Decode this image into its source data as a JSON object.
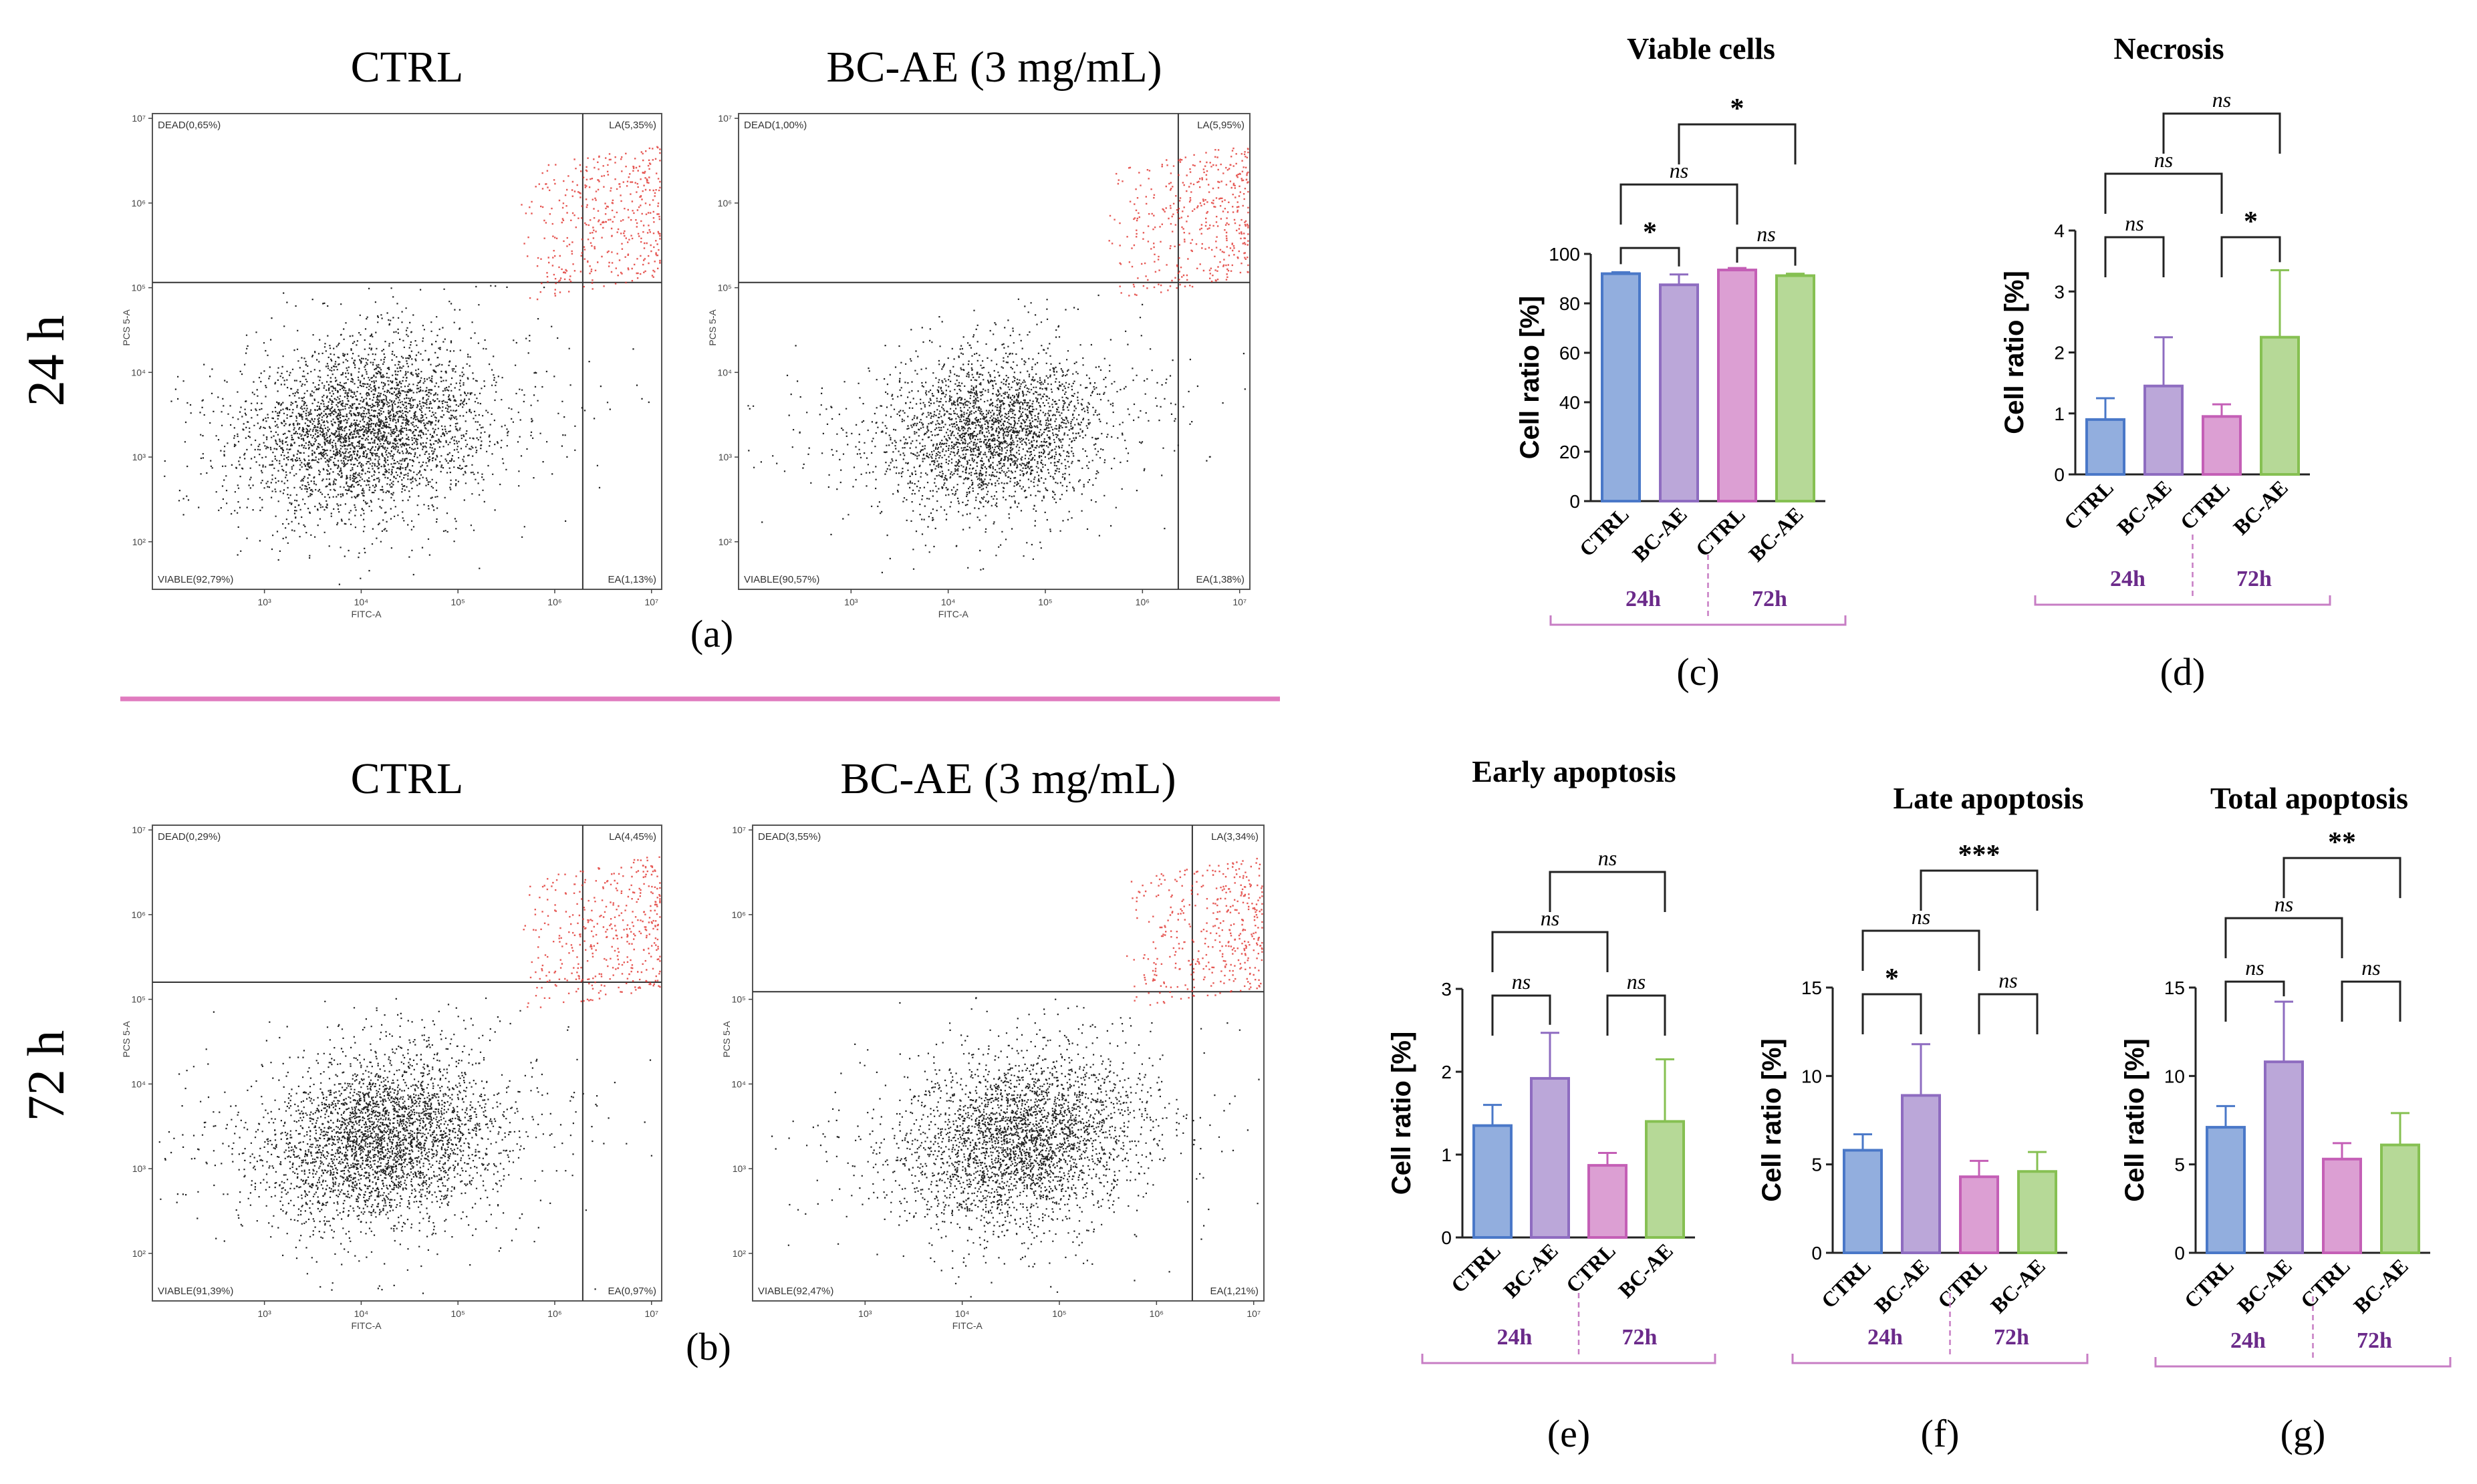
{
  "row_labels": [
    "24 h",
    "72 h"
  ],
  "panel_letters": [
    "(a)",
    "(b)",
    "(c)",
    "(d)",
    "(e)",
    "(f)",
    "(g)"
  ],
  "flow_panels": [
    {
      "id": "a",
      "row": "24 h",
      "plots": [
        {
          "title": "CTRL",
          "quadrants": {
            "dead": "DEAD(0,65%)",
            "la": "LA(5,35%)",
            "viable": "VIABLE(92,79%)",
            "ea": "EA(1,13%)"
          },
          "xlabel": "FITC-A",
          "ylabel": "PCS 5-A"
        },
        {
          "title": "BC-AE (3 mg/mL)",
          "quadrants": {
            "dead": "DEAD(1,00%)",
            "la": "LA(5,95%)",
            "viable": "VIABLE(90,57%)",
            "ea": "EA(1,38%)"
          },
          "xlabel": "FITC-A",
          "ylabel": "PCS 5-A"
        }
      ]
    },
    {
      "id": "b",
      "row": "72 h",
      "plots": [
        {
          "title": "CTRL",
          "quadrants": {
            "dead": "DEAD(0,29%)",
            "la": "LA(4,45%)",
            "viable": "VIABLE(91,39%)",
            "ea": "EA(0,97%)"
          },
          "xlabel": "FITC-A",
          "ylabel": "PCS 5-A"
        },
        {
          "title": "BC-AE (3 mg/mL)",
          "quadrants": {
            "dead": "DEAD(3,55%)",
            "la": "LA(3,34%)",
            "viable": "VIABLE(92,47%)",
            "ea": "EA(1,21%)"
          },
          "xlabel": "FITC-A",
          "ylabel": "PCS 5-A"
        }
      ]
    }
  ],
  "flow_axis_ticks": {
    "x": [
      "10³",
      "10⁴",
      "10⁵",
      "10⁶",
      "10⁷"
    ],
    "y": [
      "10⁷",
      "10⁶",
      "10⁵",
      "10⁴",
      "10³",
      "10²"
    ]
  },
  "colors": {
    "ctrl_24h": "#4a78c8",
    "bcae_24h": "#8e6cc0",
    "ctrl_72h": "#c45fb6",
    "bcae_72h": "#86c052",
    "bracket": "#c77dc4",
    "divider": "#e07bbf",
    "group_label": "#6b2a8a",
    "gated_dots": "#e0302a",
    "dots": "#222222"
  },
  "chart_data": [
    {
      "id": "c",
      "type": "bar",
      "title": "Viable cells",
      "ylabel": "Cell ratio [%]",
      "categories": [
        "CTRL",
        "BC-AE",
        "CTRL",
        "BC-AE"
      ],
      "groups": [
        "24h",
        "72h"
      ],
      "values": [
        92,
        87.5,
        93.5,
        91.2
      ],
      "errors": [
        0.6,
        4.2,
        0.8,
        0.8
      ],
      "ylim": [
        0,
        100
      ],
      "yticks": [
        0,
        20,
        40,
        60,
        80,
        100
      ],
      "significance": [
        {
          "from": 0,
          "to": 1,
          "label": "*"
        },
        {
          "from": 2,
          "to": 3,
          "label": "ns"
        },
        {
          "from": 0,
          "to": 2,
          "label": "ns"
        },
        {
          "from": 1,
          "to": 3,
          "label": "*"
        }
      ]
    },
    {
      "id": "d",
      "type": "bar",
      "title": "Necrosis",
      "ylabel": "Cell ratio [%]",
      "categories": [
        "CTRL",
        "BC-AE",
        "CTRL",
        "BC-AE"
      ],
      "groups": [
        "24h",
        "72h"
      ],
      "values": [
        0.9,
        1.45,
        0.95,
        2.25
      ],
      "errors": [
        0.35,
        0.8,
        0.2,
        1.1
      ],
      "ylim": [
        0,
        4
      ],
      "yticks": [
        0,
        1,
        2,
        3,
        4
      ],
      "significance": [
        {
          "from": 0,
          "to": 1,
          "label": "ns"
        },
        {
          "from": 2,
          "to": 3,
          "label": "*"
        },
        {
          "from": 0,
          "to": 2,
          "label": "ns"
        },
        {
          "from": 1,
          "to": 3,
          "label": "ns"
        }
      ]
    },
    {
      "id": "e",
      "type": "bar",
      "title": "Early apoptosis",
      "ylabel": "Cell ratio [%]",
      "categories": [
        "CTRL",
        "BC-AE",
        "CTRL",
        "BC-AE"
      ],
      "groups": [
        "24h",
        "72h"
      ],
      "values": [
        1.35,
        1.92,
        0.87,
        1.4
      ],
      "errors": [
        0.25,
        0.55,
        0.15,
        0.75
      ],
      "ylim": [
        0,
        3
      ],
      "yticks": [
        0,
        1,
        2,
        3
      ],
      "significance": [
        {
          "from": 0,
          "to": 1,
          "label": "ns"
        },
        {
          "from": 2,
          "to": 3,
          "label": "ns"
        },
        {
          "from": 0,
          "to": 2,
          "label": "ns"
        },
        {
          "from": 1,
          "to": 3,
          "label": "ns"
        }
      ]
    },
    {
      "id": "f",
      "type": "bar",
      "title": "Late apoptosis",
      "ylabel": "Cell ratio [%]",
      "categories": [
        "CTRL",
        "BC-AE",
        "CTRL",
        "BC-AE"
      ],
      "groups": [
        "24h",
        "72h"
      ],
      "values": [
        5.8,
        8.9,
        4.3,
        4.6
      ],
      "errors": [
        0.9,
        2.9,
        0.9,
        1.1
      ],
      "ylim": [
        0,
        15
      ],
      "yticks": [
        0,
        5,
        10,
        15
      ],
      "significance": [
        {
          "from": 0,
          "to": 1,
          "label": "*"
        },
        {
          "from": 2,
          "to": 3,
          "label": "ns"
        },
        {
          "from": 0,
          "to": 2,
          "label": "ns"
        },
        {
          "from": 1,
          "to": 3,
          "label": "***"
        }
      ]
    },
    {
      "id": "g",
      "type": "bar",
      "title": "Total apoptosis",
      "ylabel": "Cell ratio [%]",
      "categories": [
        "CTRL",
        "BC-AE",
        "CTRL",
        "BC-AE"
      ],
      "groups": [
        "24h",
        "72h"
      ],
      "values": [
        7.1,
        10.8,
        5.3,
        6.1
      ],
      "errors": [
        1.2,
        3.4,
        0.9,
        1.8
      ],
      "ylim": [
        0,
        15
      ],
      "yticks": [
        0,
        5,
        10,
        15
      ],
      "significance": [
        {
          "from": 0,
          "to": 1,
          "label": "ns"
        },
        {
          "from": 2,
          "to": 3,
          "label": "ns"
        },
        {
          "from": 0,
          "to": 2,
          "label": "ns"
        },
        {
          "from": 1,
          "to": 3,
          "label": "**"
        }
      ]
    }
  ]
}
